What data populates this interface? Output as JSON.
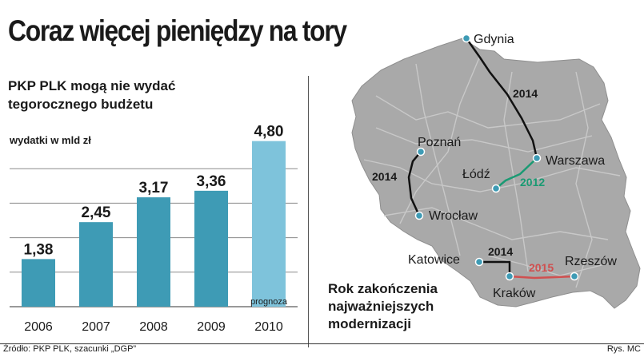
{
  "header": {
    "title": "Coraz więcej pieniędzy na tory"
  },
  "chart": {
    "subtitle_line1": "PKP PLK mogą nie wydać",
    "subtitle_line2": "tegorocznego budżetu",
    "ylabel": "wydatki w mld zł",
    "forecast_note": "prognoza"
  },
  "chart_data": {
    "type": "bar",
    "categories": [
      "2006",
      "2007",
      "2008",
      "2009",
      "2010"
    ],
    "values": [
      1.38,
      2.45,
      3.17,
      3.36,
      4.8
    ],
    "value_labels": [
      "1,38",
      "2,45",
      "3,17",
      "3,36",
      "4,80"
    ],
    "ylim": [
      0,
      5
    ],
    "grid": true,
    "colors": {
      "bar": "#3e9bb5",
      "forecast_bar": "#7ec3db",
      "grid": "#8a8a8a"
    }
  },
  "map": {
    "caption_line1": "Rok zakończenia",
    "caption_line2": "najważniejszych",
    "caption_line3": "modernizacji",
    "land_color": "#a9a9a9",
    "cities": [
      "Gdynia",
      "Warszawa",
      "Łódź",
      "Poznań",
      "Wrocław",
      "Katowice",
      "Kraków",
      "Rzeszów"
    ],
    "route_years": {
      "gdynia_warszawa": "2014",
      "lodz_warszawa": "2012",
      "poznan_wroclaw": "2014",
      "katowice_krakow": "2014",
      "krakow_rzeszow": "2015"
    },
    "route_colors": {
      "default": "#111111",
      "lodz_warszawa": "#1a9a73",
      "krakow_rzeszow": "#d05050"
    }
  },
  "footer": {
    "source": "Źródło: PKP PLK, szacunki „DGP”",
    "credit": "Rys. MC"
  }
}
